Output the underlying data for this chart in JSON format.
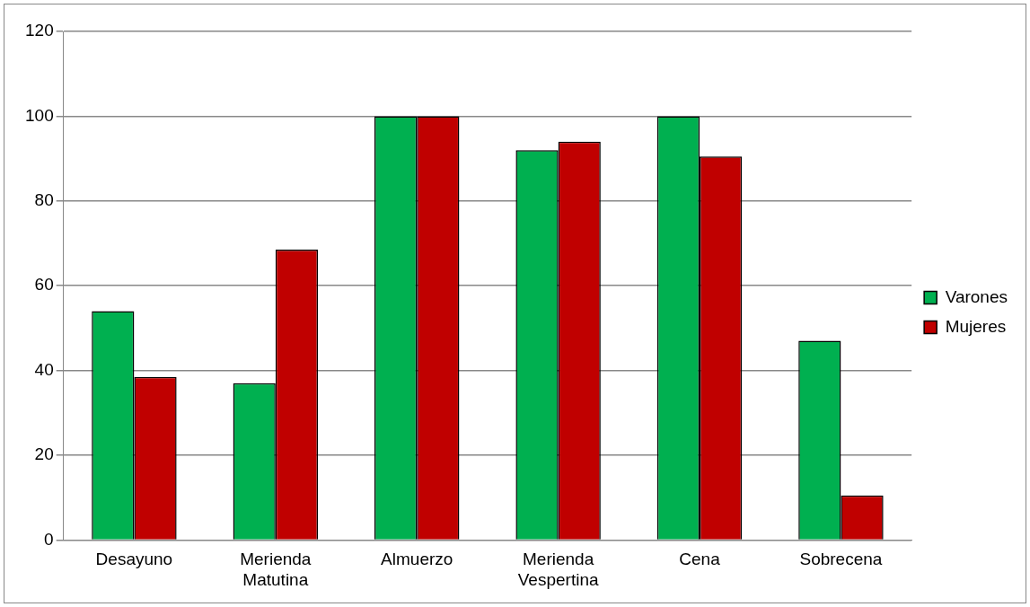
{
  "chart_data": {
    "type": "bar",
    "categories": [
      "Desayuno",
      "Merienda Matutina",
      "Almuerzo",
      "Merienda Vespertina",
      "Cena",
      "Sobrecena"
    ],
    "series": [
      {
        "name": "Varones",
        "color": "#00b050",
        "values": [
          54,
          37,
          100,
          92,
          100,
          47
        ]
      },
      {
        "name": "Mujeres",
        "color": "#c00000",
        "values": [
          38.5,
          68.5,
          100,
          94,
          90.5,
          10.5
        ]
      }
    ],
    "ylim": [
      0,
      120
    ],
    "yticks": [
      0,
      20,
      40,
      60,
      80,
      100,
      120
    ],
    "grid": "y",
    "legend": "right"
  }
}
